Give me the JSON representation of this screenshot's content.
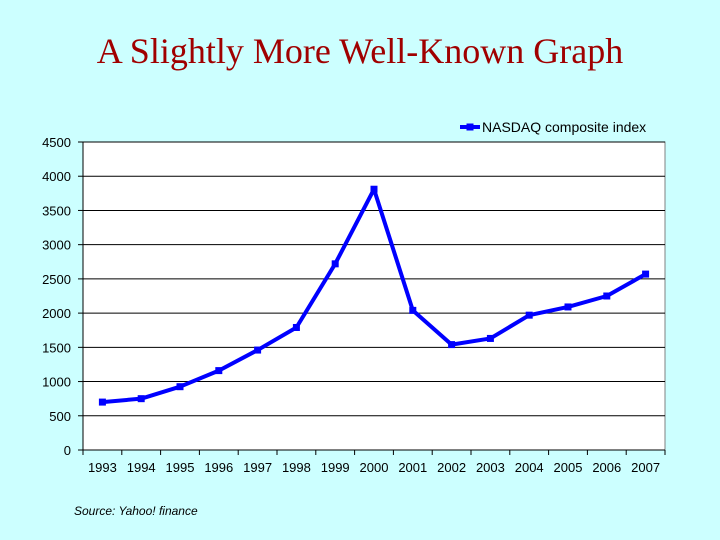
{
  "slide": {
    "title": "A Slightly More Well-Known Graph",
    "source": "Source: Yahoo! finance"
  },
  "colors": {
    "background": "#ccffff",
    "title": "#a00000",
    "series": "#0000ff",
    "plot_area": "#ffffff"
  },
  "chart_data": {
    "type": "line",
    "title": "",
    "xlabel": "",
    "ylabel": "",
    "x": [
      "1993",
      "1994",
      "1995",
      "1996",
      "1997",
      "1998",
      "1999",
      "2000",
      "2001",
      "2002",
      "2003",
      "2004",
      "2005",
      "2006",
      "2007"
    ],
    "series": [
      {
        "name": "NASDAQ composite index",
        "values": [
          700,
          750,
          925,
          1160,
          1460,
          1790,
          2720,
          3810,
          2040,
          1540,
          1630,
          1970,
          2090,
          2250,
          2570
        ]
      }
    ],
    "ylim": [
      0,
      4500
    ],
    "yticks": [
      0,
      500,
      1000,
      1500,
      2000,
      2500,
      3000,
      3500,
      4000,
      4500
    ],
    "grid": "horizontal",
    "legend": "top-right",
    "markers": "square"
  }
}
